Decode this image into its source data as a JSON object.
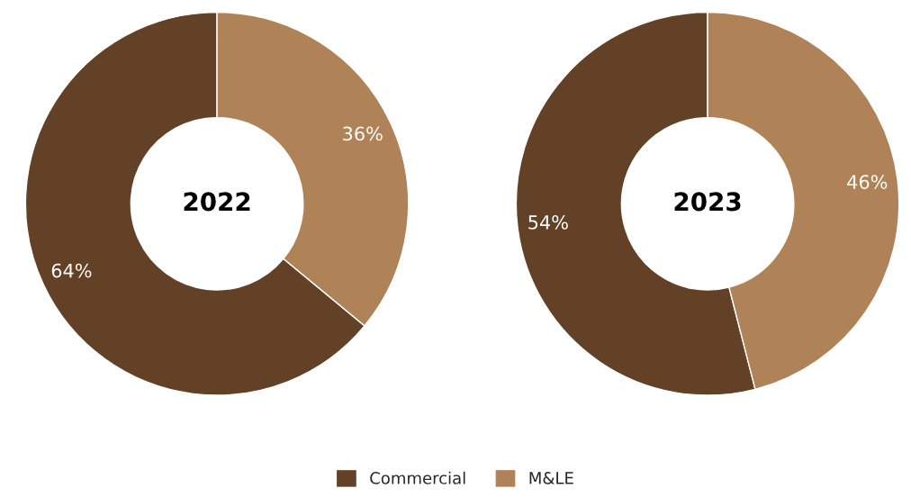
{
  "chart_data": [
    {
      "type": "donut",
      "title": "2022",
      "categories": [
        "Commercial",
        "M&LE"
      ],
      "values": [
        64,
        36
      ],
      "value_labels": [
        "64%",
        "36%"
      ],
      "colors": [
        "#634126",
        "#b08257"
      ],
      "legend": "bottom"
    },
    {
      "type": "donut",
      "title": "2023",
      "categories": [
        null,
        null
      ],
      "values": [
        54,
        46
      ],
      "value_labels": [
        "54%",
        "46%"
      ],
      "colors": [
        "#634126",
        "#b08257"
      ]
    }
  ]
}
